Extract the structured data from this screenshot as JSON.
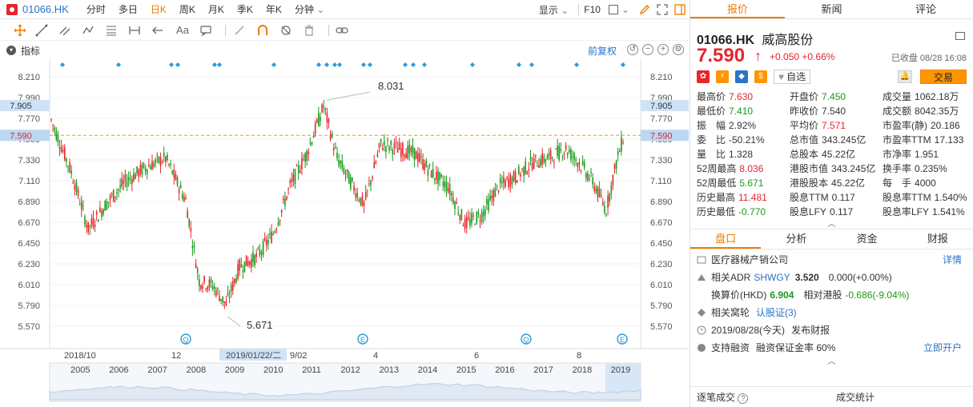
{
  "topbar": {
    "symbol": "01066.HK",
    "tabs": [
      "分时",
      "多日",
      "日K",
      "周K",
      "月K",
      "季K",
      "年K",
      "分钟"
    ],
    "active_tab": "日K",
    "display_label": "显示",
    "f10_label": "F10"
  },
  "indicator": {
    "label": "指标",
    "fuquan_label": "前复权"
  },
  "chart_data": {
    "type": "candlestick",
    "price_axis_labels": [
      "8.210",
      "7.990",
      "7.770",
      "7.550",
      "7.330",
      "7.110",
      "6.890",
      "6.670",
      "6.450",
      "6.230",
      "6.010",
      "5.790",
      "5.570"
    ],
    "highlighted_labels": [
      "7.905",
      "7.590"
    ],
    "current_price_line": 7.59,
    "high_marker": "8.031",
    "low_marker": "5.671",
    "date_labels": [
      "2018/10",
      "12",
      "2019/01/22/二",
      "9/02",
      "4",
      "6",
      "8"
    ],
    "overview_years": [
      "2005",
      "2006",
      "2007",
      "2008",
      "2009",
      "2010",
      "2011",
      "2012",
      "2013",
      "2014",
      "2015",
      "2016",
      "2017",
      "2018",
      "2019"
    ],
    "event_markers": [
      "Q",
      "E",
      "Q",
      "E"
    ]
  },
  "panel": {
    "tabs": [
      "报价",
      "新闻",
      "评论"
    ],
    "code": "01066.HK",
    "name": "威高股份",
    "price": "7.590",
    "change": "+0.050",
    "change_pct": "+0.66%",
    "status": "已收盘 08/28 16:08",
    "zixuan_label": "自选",
    "trade_label": "交易",
    "quotes": [
      [
        {
          "k": "最高价",
          "v": "7.630",
          "c": "red"
        },
        {
          "k": "开盘价",
          "v": "7.450",
          "c": "green"
        },
        {
          "k": "成交量",
          "v": "1062.18万",
          "c": ""
        }
      ],
      [
        {
          "k": "最低价",
          "v": "7.410",
          "c": "green"
        },
        {
          "k": "昨收价",
          "v": "7.540",
          "c": ""
        },
        {
          "k": "成交额",
          "v": "8042.35万",
          "c": ""
        }
      ],
      [
        {
          "k": "振　幅",
          "v": "2.92%",
          "c": ""
        },
        {
          "k": "平均价",
          "v": "7.571",
          "c": "red"
        },
        {
          "k": "市盈率(静)",
          "v": "20.186",
          "c": ""
        }
      ],
      [
        {
          "k": "委　比",
          "v": "-50.21%",
          "c": ""
        },
        {
          "k": "总市值",
          "v": "343.245亿",
          "c": ""
        },
        {
          "k": "市盈率TTM",
          "v": "17.133",
          "c": ""
        }
      ],
      [
        {
          "k": "量　比",
          "v": "1.328",
          "c": ""
        },
        {
          "k": "总股本",
          "v": "45.22亿",
          "c": ""
        },
        {
          "k": "市净率",
          "v": "1.951",
          "c": ""
        }
      ],
      [
        {
          "k": "52周最高",
          "v": "8.036",
          "c": "red"
        },
        {
          "k": "港股市值",
          "v": "343.245亿",
          "c": ""
        },
        {
          "k": "换手率",
          "v": "0.235%",
          "c": ""
        }
      ],
      [
        {
          "k": "52周最低",
          "v": "5.671",
          "c": "green"
        },
        {
          "k": "港股股本",
          "v": "45.22亿",
          "c": ""
        },
        {
          "k": "每　手",
          "v": "4000",
          "c": ""
        }
      ],
      [
        {
          "k": "历史最高",
          "v": "11.481",
          "c": "red"
        },
        {
          "k": "股息TTM",
          "v": "0.117",
          "c": ""
        },
        {
          "k": "股息率TTM",
          "v": "1.540%",
          "c": ""
        }
      ],
      [
        {
          "k": "历史最低",
          "v": "-0.770",
          "c": "green"
        },
        {
          "k": "股息LFY",
          "v": "0.117",
          "c": ""
        },
        {
          "k": "股息率LFY",
          "v": "1.541%",
          "c": ""
        }
      ]
    ],
    "sub_tabs": [
      "盘口",
      "分析",
      "资金",
      "财报"
    ],
    "info": {
      "industry": "医疗器械产销公司",
      "detail_link": "详情",
      "adr_label": "相关ADR",
      "adr_code": "SHWGY",
      "adr_price": "3.520",
      "adr_change": "0.000(+0.00%)",
      "hkd_label": "换算价(HKD)",
      "hkd_price": "6.904",
      "rel_label": "相对港股",
      "rel_value": "-0.686(-9.04%)",
      "warrant_label": "相关窝轮",
      "warrant_link": "认股证(3)",
      "report_date": "2019/08/28(今天)",
      "report_label": "发布财报",
      "margin_label": "支持融资",
      "margin_rate": "融资保证金率 60%",
      "open_account": "立即开户"
    },
    "bottom": {
      "left": "逐笔成交",
      "right": "成交统计"
    }
  }
}
